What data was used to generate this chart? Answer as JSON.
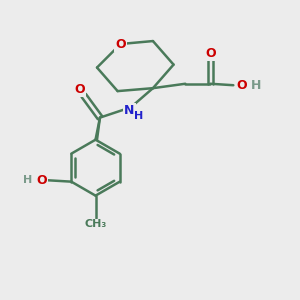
{
  "bg_color": "#ececec",
  "bond_color": "#4a7a5a",
  "bond_width": 1.8,
  "atom_colors": {
    "O": "#cc0000",
    "N": "#2222cc",
    "C": "#4a7a5a",
    "H": "#7a9a8a"
  }
}
